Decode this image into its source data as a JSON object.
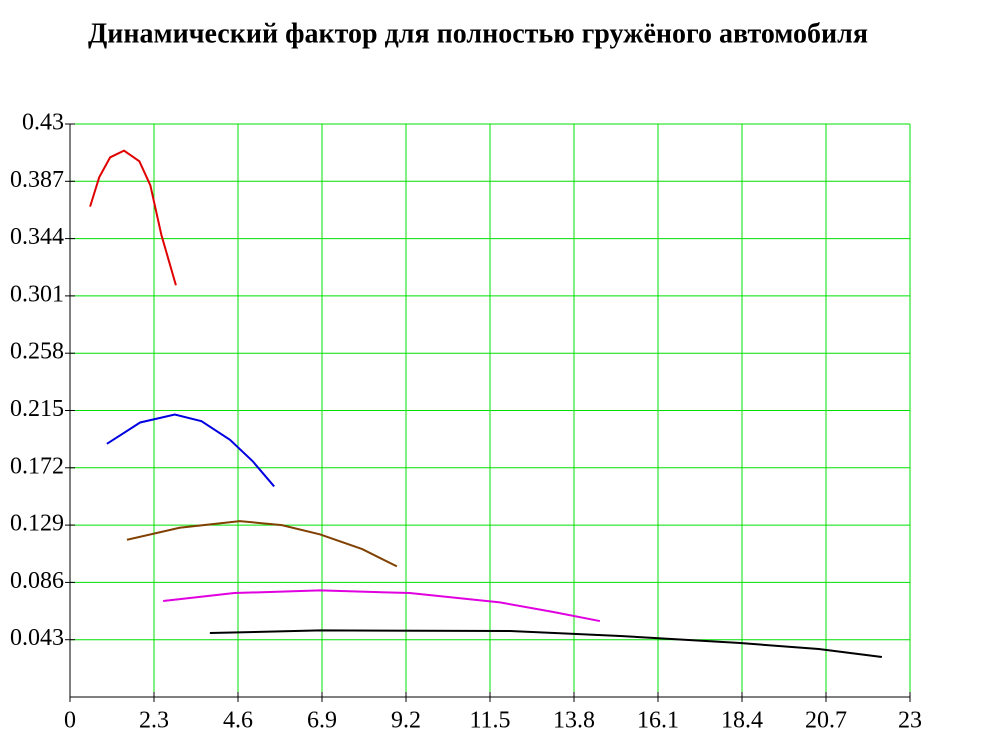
{
  "chart_data": {
    "type": "line",
    "title": "Динамический фактор для полностью гружёного автомобиля",
    "xlim": [
      0,
      23
    ],
    "xticks": [
      0,
      2.3,
      4.6,
      6.9,
      9.2,
      11.5,
      13.8,
      16.1,
      18.4,
      20.7,
      23
    ],
    "ylim": [
      0,
      0.43
    ],
    "yticks": [
      0.043,
      0.086,
      0.129,
      0.172,
      0.215,
      0.258,
      0.301,
      0.344,
      0.387,
      0.43
    ],
    "grid": true,
    "grid_color": "#00e000",
    "series": [
      {
        "color": "#e00000",
        "x": [
          0.55,
          0.8,
          1.1,
          1.48,
          1.9,
          2.2,
          2.5,
          2.7,
          2.9
        ],
        "values": [
          0.368,
          0.39,
          0.405,
          0.41,
          0.402,
          0.384,
          0.347,
          0.328,
          0.309
        ]
      },
      {
        "color": "#0000e0",
        "x": [
          1.01,
          1.92,
          2.87,
          3.6,
          4.38,
          5.0,
          5.59
        ],
        "values": [
          0.19,
          0.206,
          0.212,
          0.207,
          0.193,
          0.177,
          0.158
        ]
      },
      {
        "color": "#804000",
        "x": [
          1.56,
          3.0,
          4.65,
          5.8,
          6.85,
          8.0,
          8.95
        ],
        "values": [
          0.118,
          0.127,
          0.132,
          0.129,
          0.122,
          0.111,
          0.098
        ]
      },
      {
        "color": "#e000e0",
        "x": [
          2.55,
          4.5,
          6.85,
          9.3,
          11.77,
          13.2,
          14.51
        ],
        "values": [
          0.072,
          0.078,
          0.08,
          0.078,
          0.071,
          0.064,
          0.057
        ]
      },
      {
        "color": "#000000",
        "x": [
          3.83,
          6.85,
          12.05,
          15.07,
          18.35,
          20.5,
          22.23
        ],
        "values": [
          0.048,
          0.05,
          0.0495,
          0.0458,
          0.0405,
          0.036,
          0.03
        ]
      }
    ]
  }
}
